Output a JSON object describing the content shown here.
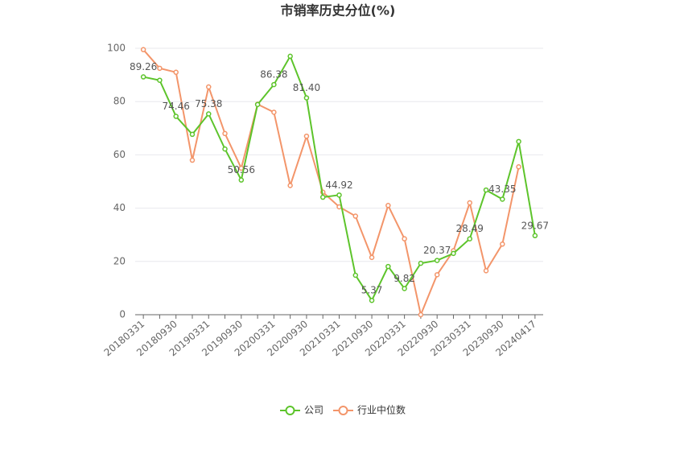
{
  "chart_data": {
    "type": "line",
    "title": "市销率历史分位(%)",
    "categories": [
      "20180331",
      null,
      "20180930",
      null,
      "20190331",
      null,
      "20190930",
      null,
      "20200331",
      null,
      "20200930",
      null,
      "20210331",
      null,
      "20210930",
      null,
      "20220331",
      null,
      "20220930",
      null,
      "20230331",
      null,
      "20230930",
      null,
      "20240417"
    ],
    "series": [
      {
        "name": "公司",
        "color": "#5dc42b",
        "values": [
          89.26,
          88,
          74.46,
          67.7,
          75.38,
          62.2,
          50.56,
          78.9,
          86.38,
          97,
          81.4,
          44.1,
          44.92,
          14.8,
          5.37,
          18.1,
          9.82,
          19.3,
          20.37,
          23,
          28.49,
          46.8,
          43.35,
          65,
          29.67
        ],
        "value_labels": [
          "89.26",
          null,
          "74.46",
          null,
          "75.38",
          null,
          "50.56",
          null,
          "86.38",
          null,
          "81.40",
          null,
          "44.92",
          null,
          "5.37",
          null,
          "9.82",
          null,
          "20.37",
          null,
          "28.49",
          null,
          "43.35",
          null,
          "29.67"
        ]
      },
      {
        "name": "行业中位数",
        "color": "#f3956a",
        "values": [
          99.5,
          92.5,
          91,
          58,
          85.5,
          68,
          55,
          79,
          76,
          48.5,
          67,
          46,
          40.5,
          37,
          21.5,
          41,
          28.5,
          0,
          15,
          24,
          42,
          16.5,
          26.5,
          55.5,
          null
        ]
      }
    ],
    "ylim": [
      0,
      100
    ],
    "yticks": [
      0,
      20,
      40,
      60,
      80,
      100
    ],
    "grid": true,
    "legend": "bottom"
  }
}
